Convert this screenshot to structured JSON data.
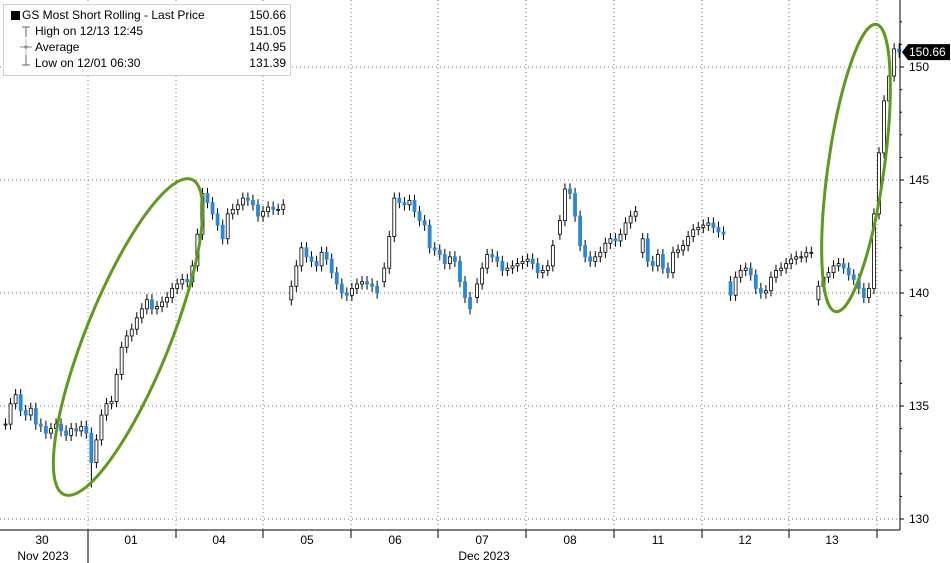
{
  "legend": {
    "title": "GS Most Short Rolling - Last Price",
    "last_value": "150.66",
    "rows": [
      {
        "label": "High on 12/13 12:45",
        "value": "151.05"
      },
      {
        "label": "Average",
        "value": "140.95"
      },
      {
        "label": "Low on 12/01 06:30",
        "value": "131.39"
      }
    ]
  },
  "last_price_tag": "150.66",
  "chart_data": {
    "type": "candlestick",
    "title": "GS Most Short Rolling - Last Price",
    "ylim": [
      129.5,
      152.5
    ],
    "y_ticks": [
      130,
      135,
      140,
      145,
      150
    ],
    "x_day_labels": [
      "30",
      "01",
      "04",
      "05",
      "06",
      "07",
      "08",
      "11",
      "12",
      "13"
    ],
    "x_month_labels": [
      "Nov 2023",
      "Dec 2023"
    ],
    "grid": "dotted",
    "last_price": 150.66,
    "high": 151.05,
    "average": 140.95,
    "low": 131.39,
    "colors": {
      "up": "#ffffff",
      "down": "#2b87d9",
      "outline": "#000000",
      "highlight": "#5e9a1c"
    },
    "annotations": [
      "ellipse around 12/01 rally",
      "ellipse around 12/13 rally"
    ],
    "series_close": [
      134.2,
      135.1,
      135.5,
      134.8,
      134.6,
      134.9,
      134.2,
      134.1,
      133.8,
      134.0,
      134.2,
      133.9,
      133.7,
      134.0,
      133.9,
      134.1,
      133.8,
      132.5,
      133.5,
      134.6,
      135.1,
      135.2,
      136.4,
      137.6,
      138.1,
      138.4,
      138.9,
      139.3,
      139.7,
      139.3,
      139.4,
      139.6,
      139.8,
      140.2,
      140.4,
      140.6,
      140.5,
      141.2,
      142.6,
      144.4,
      144.0,
      143.5,
      143.0,
      142.4,
      143.5,
      143.7,
      143.9,
      144.2,
      144.1,
      143.9,
      143.4,
      143.6,
      143.8,
      143.7,
      143.7,
      143.9,
      140.3,
      141.2,
      142.0,
      141.6,
      141.4,
      141.2,
      141.8,
      141.5,
      140.9,
      140.4,
      140.0,
      139.9,
      140.2,
      140.4,
      140.5,
      140.4,
      140.3,
      140.0,
      141.1,
      142.5,
      144.2,
      144.0,
      143.9,
      144.1,
      143.6,
      143.2,
      143.0,
      142.0,
      141.9,
      141.7,
      141.3,
      141.6,
      141.4,
      140.5,
      139.8,
      139.3,
      140.4,
      141.1,
      141.7,
      141.6,
      141.4,
      141.0,
      141.1,
      141.2,
      141.3,
      141.4,
      141.5,
      141.3,
      140.9,
      141.0,
      141.2,
      142.1,
      143.2,
      144.6,
      144.4,
      143.4,
      142.1,
      141.6,
      141.4,
      141.6,
      141.8,
      142.2,
      142.4,
      142.3,
      142.6,
      143.1,
      143.4,
      143.6,
      142.4,
      141.4,
      141.2,
      141.7,
      141.1,
      140.9,
      141.8,
      141.9,
      142.1,
      142.5,
      142.8,
      142.9,
      143.0,
      143.1,
      142.9,
      142.7,
      142.6,
      139.9,
      140.7,
      141.0,
      141.1,
      140.8,
      140.2,
      140.0,
      140.1,
      140.7,
      141.0,
      141.1,
      141.3,
      141.5,
      141.6,
      141.6,
      141.8,
      141.8,
      140.3,
      140.7,
      140.9,
      141.2,
      141.3,
      141.1,
      140.8,
      140.6,
      140.2,
      139.8,
      140.2,
      143.5,
      146.2,
      148.5,
      149.6,
      150.8,
      150.66
    ]
  }
}
